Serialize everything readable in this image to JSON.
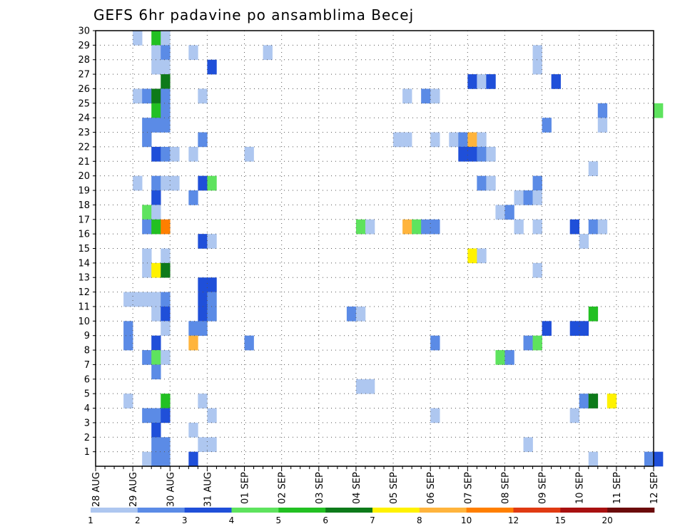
{
  "chart_data": {
    "type": "heatmap",
    "title": "GEFS 6hr padavine po ansamblima Becej",
    "x_tick_labels": [
      "28 AUG",
      "29 AUG",
      "30 AUG",
      "31 AUG",
      "01 SEP",
      "02 SEP",
      "03 SEP",
      "04 SEP",
      "05 SEP",
      "06 SEP",
      "07 SEP",
      "08 SEP",
      "09 SEP",
      "10 SEP",
      "11 SEP",
      "12 SEP"
    ],
    "y_tick_labels": [
      "1",
      "2",
      "3",
      "4",
      "5",
      "6",
      "7",
      "8",
      "9",
      "10",
      "11",
      "12",
      "13",
      "14",
      "15",
      "16",
      "17",
      "18",
      "19",
      "20",
      "21",
      "22",
      "23",
      "24",
      "25",
      "26",
      "27",
      "28",
      "29",
      "30"
    ],
    "x_time_step_hours": 6,
    "ylim": [
      0,
      30
    ],
    "grid": true,
    "colorbar": {
      "labels": [
        "1",
        "2",
        "3",
        "4",
        "5",
        "6",
        "7",
        "8",
        "10",
        "12",
        "15",
        "20"
      ],
      "colors": [
        "#aec7f0",
        "#5b8be6",
        "#1f4fd9",
        "#5ee35e",
        "#22c022",
        "#0d7a1a",
        "#fff200",
        "#ffb43c",
        "#ff7f00",
        "#e03a12",
        "#a81010",
        "#6b0a0a"
      ]
    },
    "values_encoding": "[timestep_index, member, precip_class]",
    "cells": [
      [
        4,
        30,
        1
      ],
      [
        6,
        30,
        5
      ],
      [
        7,
        30,
        1
      ],
      [
        6,
        29,
        1
      ],
      [
        7,
        29,
        2
      ],
      [
        10,
        29,
        1
      ],
      [
        18,
        29,
        1
      ],
      [
        47,
        29,
        1
      ],
      [
        6,
        28,
        1
      ],
      [
        7,
        28,
        1
      ],
      [
        12,
        28,
        3
      ],
      [
        47,
        28,
        1
      ],
      [
        7,
        27,
        6
      ],
      [
        40,
        27,
        3
      ],
      [
        41,
        27,
        1
      ],
      [
        42,
        27,
        3
      ],
      [
        49,
        27,
        3
      ],
      [
        4,
        26,
        1
      ],
      [
        5,
        26,
        2
      ],
      [
        6,
        26,
        6
      ],
      [
        7,
        26,
        2
      ],
      [
        11,
        26,
        1
      ],
      [
        33,
        26,
        1
      ],
      [
        35,
        26,
        2
      ],
      [
        36,
        26,
        1
      ],
      [
        6,
        25,
        5
      ],
      [
        7,
        25,
        2
      ],
      [
        54,
        25,
        2
      ],
      [
        60,
        25,
        4
      ],
      [
        5,
        24,
        2
      ],
      [
        6,
        24,
        2
      ],
      [
        7,
        24,
        2
      ],
      [
        48,
        24,
        2
      ],
      [
        54,
        24,
        1
      ],
      [
        5,
        23,
        2
      ],
      [
        11,
        23,
        2
      ],
      [
        32,
        23,
        1
      ],
      [
        33,
        23,
        1
      ],
      [
        36,
        23,
        1
      ],
      [
        38,
        23,
        1
      ],
      [
        39,
        23,
        2
      ],
      [
        40,
        23,
        8
      ],
      [
        41,
        23,
        1
      ],
      [
        6,
        22,
        3
      ],
      [
        7,
        22,
        2
      ],
      [
        8,
        22,
        1
      ],
      [
        10,
        22,
        1
      ],
      [
        16,
        22,
        1
      ],
      [
        39,
        22,
        3
      ],
      [
        40,
        22,
        3
      ],
      [
        41,
        22,
        2
      ],
      [
        42,
        22,
        1
      ],
      [
        53,
        21,
        1
      ],
      [
        4,
        20,
        1
      ],
      [
        6,
        20,
        2
      ],
      [
        7,
        20,
        1
      ],
      [
        8,
        20,
        1
      ],
      [
        11,
        20,
        3
      ],
      [
        12,
        20,
        4
      ],
      [
        41,
        20,
        2
      ],
      [
        42,
        20,
        1
      ],
      [
        47,
        20,
        2
      ],
      [
        6,
        19,
        3
      ],
      [
        10,
        19,
        2
      ],
      [
        45,
        19,
        1
      ],
      [
        46,
        19,
        2
      ],
      [
        47,
        19,
        1
      ],
      [
        5,
        18,
        4
      ],
      [
        6,
        18,
        1
      ],
      [
        43,
        18,
        1
      ],
      [
        44,
        18,
        2
      ],
      [
        5,
        17,
        2
      ],
      [
        6,
        17,
        5
      ],
      [
        7,
        17,
        9
      ],
      [
        28,
        17,
        4
      ],
      [
        29,
        17,
        1
      ],
      [
        33,
        17,
        8
      ],
      [
        34,
        17,
        4
      ],
      [
        35,
        17,
        2
      ],
      [
        36,
        17,
        2
      ],
      [
        45,
        17,
        1
      ],
      [
        47,
        17,
        1
      ],
      [
        51,
        17,
        3
      ],
      [
        53,
        17,
        2
      ],
      [
        54,
        17,
        1
      ],
      [
        11,
        16,
        3
      ],
      [
        12,
        16,
        1
      ],
      [
        52,
        16,
        1
      ],
      [
        5,
        15,
        1
      ],
      [
        7,
        15,
        1
      ],
      [
        40,
        15,
        7
      ],
      [
        41,
        15,
        1
      ],
      [
        5,
        14,
        1
      ],
      [
        6,
        14,
        7
      ],
      [
        7,
        14,
        6
      ],
      [
        47,
        14,
        1
      ],
      [
        11,
        13,
        3
      ],
      [
        12,
        13,
        3
      ],
      [
        3,
        12,
        1
      ],
      [
        4,
        12,
        1
      ],
      [
        5,
        12,
        1
      ],
      [
        6,
        12,
        1
      ],
      [
        7,
        12,
        2
      ],
      [
        11,
        12,
        3
      ],
      [
        12,
        12,
        2
      ],
      [
        6,
        11,
        1
      ],
      [
        7,
        11,
        3
      ],
      [
        11,
        11,
        3
      ],
      [
        12,
        11,
        2
      ],
      [
        27,
        11,
        2
      ],
      [
        28,
        11,
        1
      ],
      [
        53,
        11,
        5
      ],
      [
        3,
        10,
        2
      ],
      [
        7,
        10,
        1
      ],
      [
        10,
        10,
        2
      ],
      [
        11,
        10,
        2
      ],
      [
        48,
        10,
        3
      ],
      [
        51,
        10,
        3
      ],
      [
        52,
        10,
        3
      ],
      [
        3,
        9,
        2
      ],
      [
        6,
        9,
        3
      ],
      [
        10,
        9,
        8
      ],
      [
        16,
        9,
        2
      ],
      [
        36,
        9,
        2
      ],
      [
        46,
        9,
        2
      ],
      [
        47,
        9,
        4
      ],
      [
        5,
        8,
        2
      ],
      [
        6,
        8,
        4
      ],
      [
        7,
        8,
        1
      ],
      [
        43,
        8,
        4
      ],
      [
        44,
        8,
        2
      ],
      [
        6,
        7,
        2
      ],
      [
        28,
        6,
        1
      ],
      [
        29,
        6,
        1
      ],
      [
        3,
        5,
        1
      ],
      [
        7,
        5,
        5
      ],
      [
        11,
        5,
        1
      ],
      [
        52,
        5,
        2
      ],
      [
        53,
        5,
        6
      ],
      [
        55,
        5,
        7
      ],
      [
        5,
        4,
        2
      ],
      [
        6,
        4,
        2
      ],
      [
        7,
        4,
        3
      ],
      [
        12,
        4,
        1
      ],
      [
        36,
        4,
        1
      ],
      [
        51,
        4,
        1
      ],
      [
        6,
        3,
        3
      ],
      [
        10,
        3,
        1
      ],
      [
        6,
        2,
        2
      ],
      [
        7,
        2,
        2
      ],
      [
        11,
        2,
        1
      ],
      [
        12,
        2,
        1
      ],
      [
        46,
        2,
        1
      ],
      [
        5,
        1,
        1
      ],
      [
        6,
        1,
        2
      ],
      [
        7,
        1,
        2
      ],
      [
        10,
        1,
        3
      ],
      [
        53,
        1,
        1
      ],
      [
        59,
        1,
        2
      ],
      [
        60,
        1,
        3
      ]
    ]
  }
}
